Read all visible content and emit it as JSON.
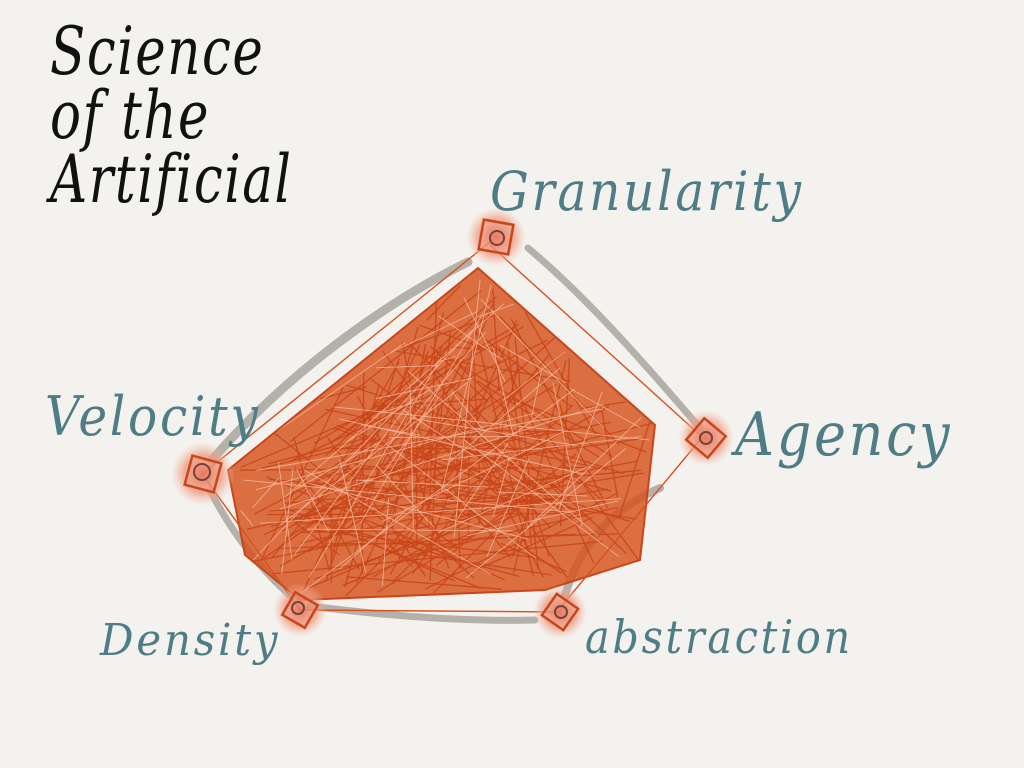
{
  "title": {
    "line1": "Science",
    "line2": "of the",
    "line3": "Artificial"
  },
  "nodes": {
    "granularity": "Granularity",
    "velocity": "Velocity",
    "agency": "Agency",
    "density": "Density",
    "abstraction": "abstraction"
  },
  "colors": {
    "background": "#f4f2ee",
    "title_ink": "#111111",
    "label_ink": "#4e7d86",
    "fill_orange": "#d6521c",
    "node_glow": "#ee9a80",
    "outline_gray": "#a8a69e"
  }
}
